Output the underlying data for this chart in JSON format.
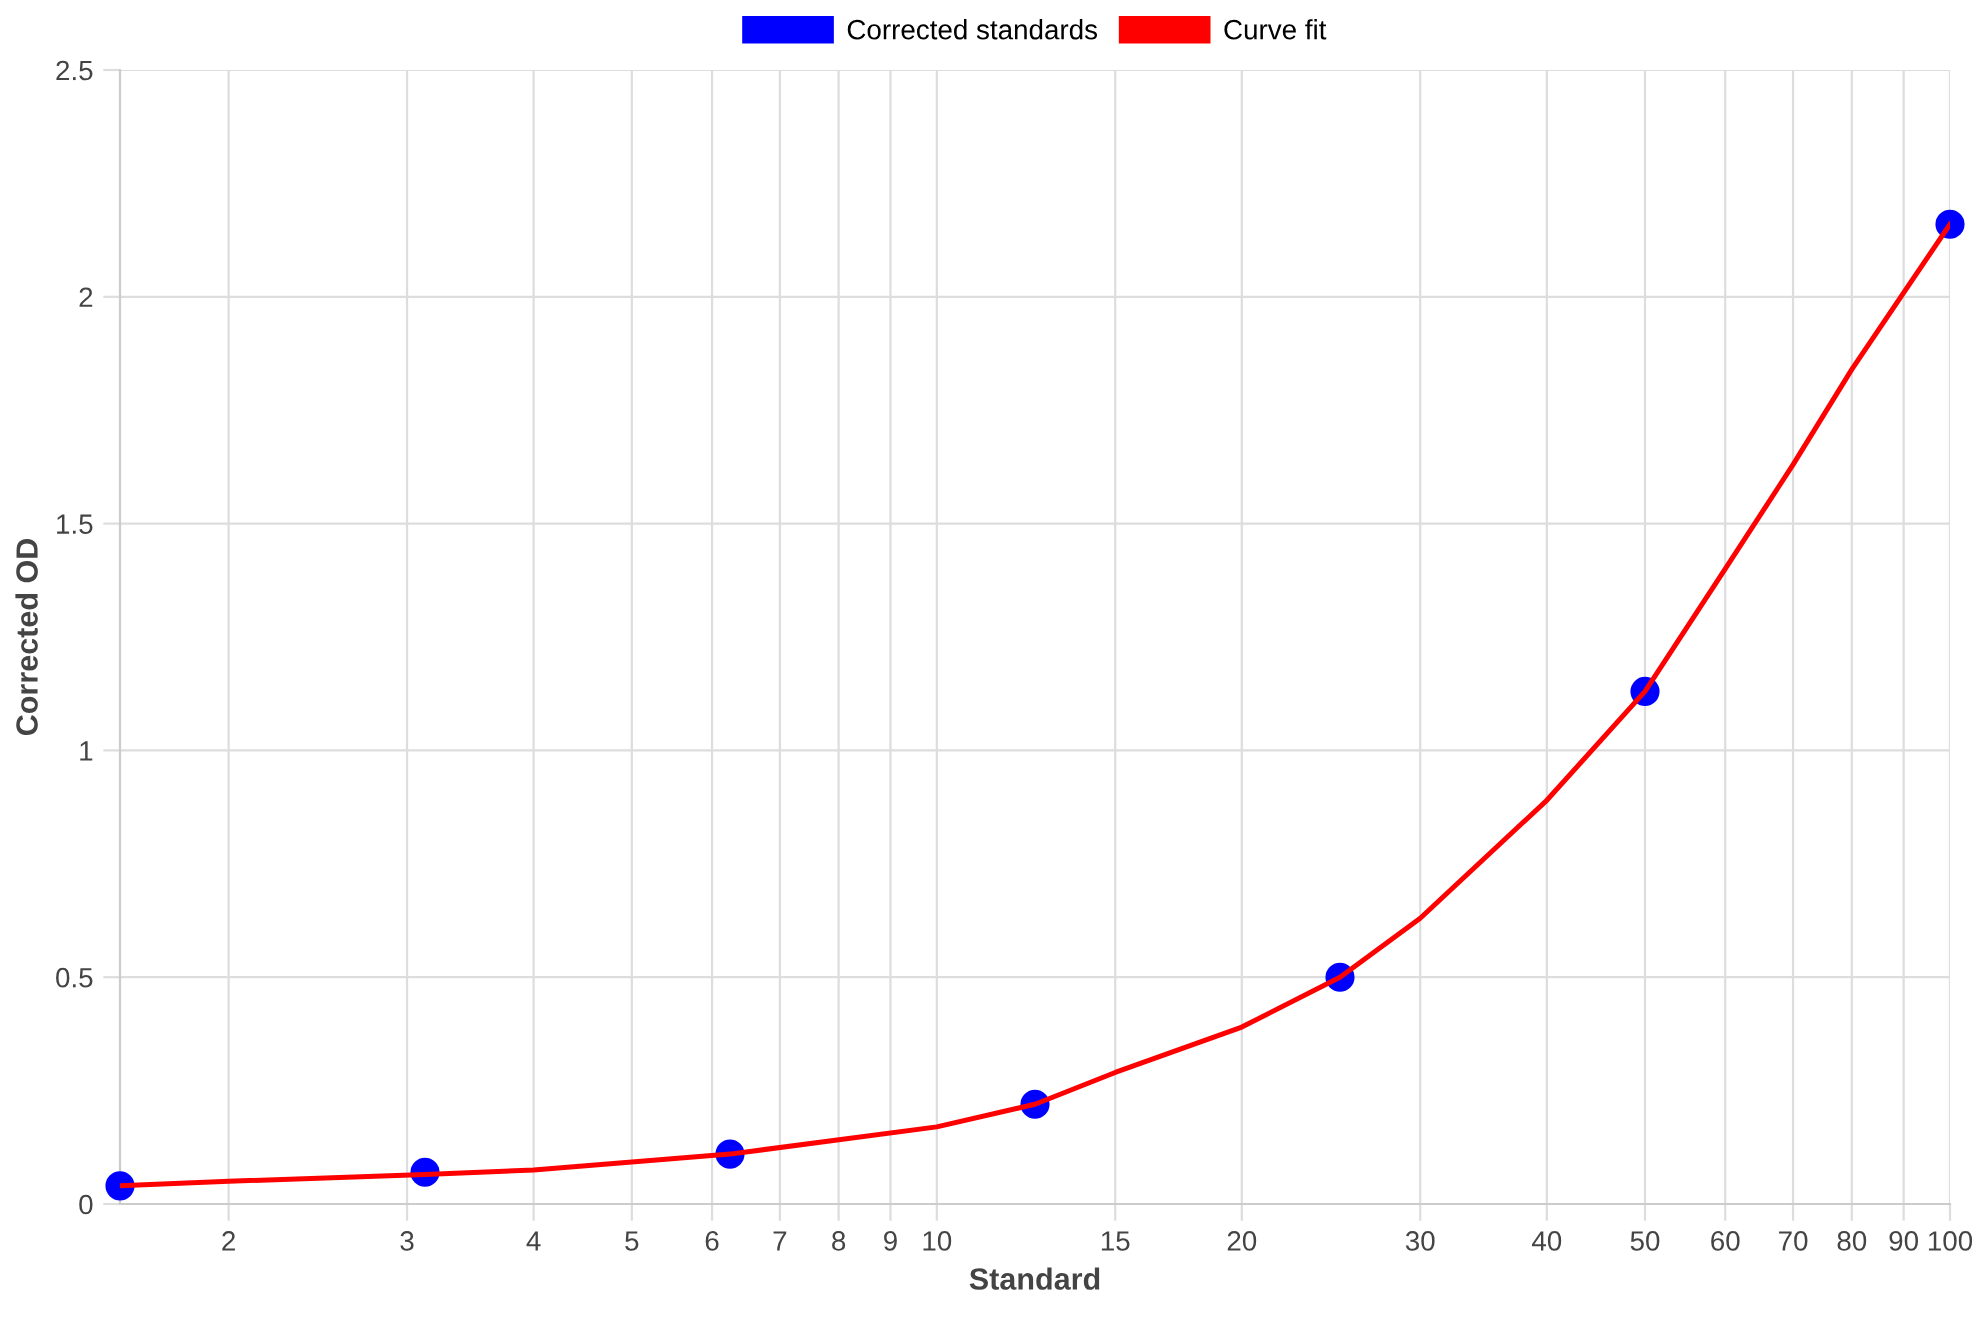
{
  "chart_data": {
    "type": "scatter",
    "xlabel": "Standard",
    "ylabel": "Corrected OD",
    "log": "x",
    "series": [
      {
        "name": "Corrected standards",
        "color": "#0000ff",
        "marker": "circle",
        "x": [
          1.5625,
          3.125,
          6.25,
          12.5,
          25,
          50,
          100
        ],
        "values": [
          0.04,
          0.07,
          0.11,
          0.22,
          0.5,
          1.13,
          2.16
        ]
      },
      {
        "name": "Curve fit",
        "type": "line",
        "color": "#ff0000",
        "marker": "none",
        "line_style": "solid",
        "x": [
          1.5625,
          2,
          3.125,
          4,
          6.25,
          10,
          12.5,
          15,
          20,
          25,
          30,
          40,
          50,
          60,
          70,
          80,
          100
        ],
        "values": [
          0.04,
          0.05,
          0.065,
          0.075,
          0.11,
          0.17,
          0.22,
          0.29,
          0.39,
          0.5,
          0.63,
          0.89,
          1.13,
          1.4,
          1.63,
          1.84,
          2.16
        ]
      }
    ],
    "xlim": [
      1.5625,
      100
    ],
    "xticks": [
      2,
      3,
      4,
      5,
      6,
      7,
      8,
      9,
      10,
      15,
      20,
      30,
      40,
      50,
      60,
      70,
      80,
      90,
      100
    ],
    "ylim": [
      0,
      2.5
    ],
    "yticks": [
      0,
      0.5,
      1,
      1.5,
      2,
      2.5
    ],
    "grid": true,
    "legend": "top"
  }
}
